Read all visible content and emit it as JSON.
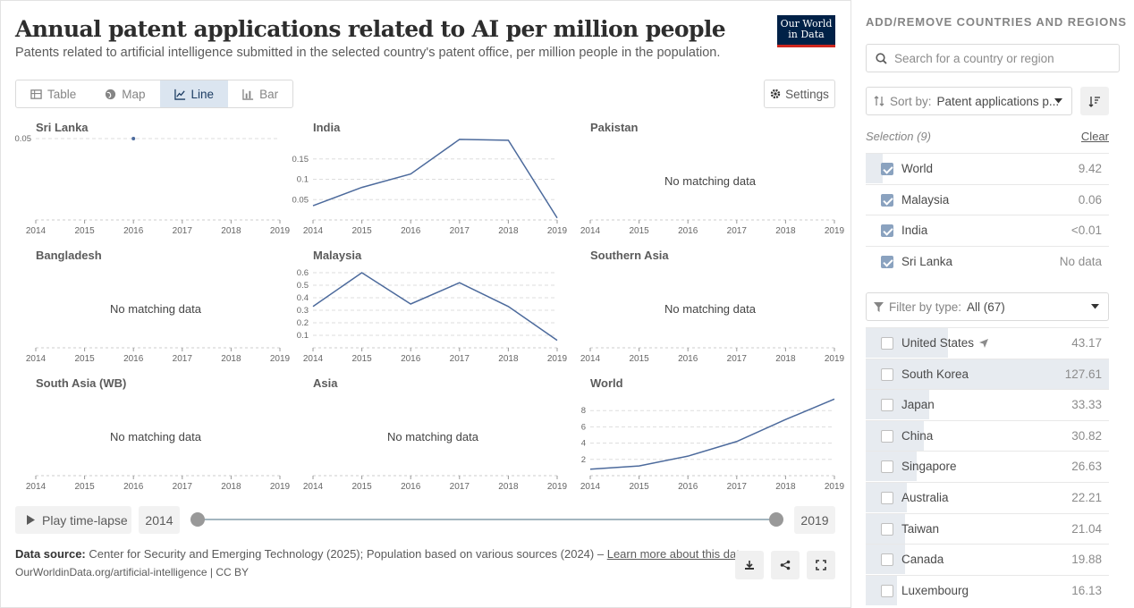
{
  "header": {
    "title": "Annual patent applications related to AI per million people",
    "subtitle": "Patents related to artificial intelligence submitted in the selected country's patent office, per million people in the population.",
    "logo_line1": "Our World",
    "logo_line2": "in Data"
  },
  "tabs": [
    {
      "label": "Table",
      "icon": "table-icon",
      "active": false
    },
    {
      "label": "Map",
      "icon": "globe-icon",
      "active": false
    },
    {
      "label": "Line",
      "icon": "line-chart-icon",
      "active": true
    },
    {
      "label": "Bar",
      "icon": "bar-chart-icon",
      "active": false
    }
  ],
  "settings_label": "Settings",
  "no_data_label": "No matching data",
  "chart_data": [
    {
      "type": "line",
      "title": "Sri Lanka",
      "x": [
        2014,
        2015,
        2016,
        2017,
        2018,
        2019
      ],
      "xlim": [
        2014,
        2019
      ],
      "yticks": [
        0.05
      ],
      "ylim": [
        0,
        0.05
      ],
      "series": [
        {
          "values": [
            null,
            null,
            0.05,
            null,
            null,
            null
          ]
        }
      ]
    },
    {
      "type": "line",
      "title": "India",
      "x": [
        2014,
        2015,
        2016,
        2017,
        2018,
        2019
      ],
      "xlim": [
        2014,
        2019
      ],
      "yticks": [
        0.05,
        0.1,
        0.15
      ],
      "ylim": [
        0,
        0.2
      ],
      "series": [
        {
          "values": [
            0.035,
            0.08,
            0.113,
            0.198,
            0.196,
            0.005
          ]
        }
      ]
    },
    {
      "type": "line",
      "title": "Pakistan",
      "x": [
        2014,
        2015,
        2016,
        2017,
        2018,
        2019
      ],
      "xlim": [
        2014,
        2019
      ],
      "no_data": true,
      "series": []
    },
    {
      "type": "line",
      "title": "Bangladesh",
      "x": [
        2014,
        2015,
        2016,
        2017,
        2018,
        2019
      ],
      "xlim": [
        2014,
        2019
      ],
      "no_data": true,
      "series": []
    },
    {
      "type": "line",
      "title": "Malaysia",
      "x": [
        2014,
        2015,
        2016,
        2017,
        2018,
        2019
      ],
      "xlim": [
        2014,
        2019
      ],
      "yticks": [
        0.1,
        0.2,
        0.3,
        0.4,
        0.5,
        0.6
      ],
      "ylim": [
        0,
        0.65
      ],
      "series": [
        {
          "values": [
            0.33,
            0.6,
            0.35,
            0.52,
            0.33,
            0.06
          ]
        }
      ]
    },
    {
      "type": "line",
      "title": "Southern Asia",
      "x": [
        2014,
        2015,
        2016,
        2017,
        2018,
        2019
      ],
      "xlim": [
        2014,
        2019
      ],
      "no_data": true,
      "series": []
    },
    {
      "type": "line",
      "title": "South Asia (WB)",
      "x": [
        2014,
        2015,
        2016,
        2017,
        2018,
        2019
      ],
      "xlim": [
        2014,
        2019
      ],
      "no_data": true,
      "series": []
    },
    {
      "type": "line",
      "title": "Asia",
      "x": [
        2014,
        2015,
        2016,
        2017,
        2018,
        2019
      ],
      "xlim": [
        2014,
        2019
      ],
      "no_data": true,
      "series": []
    },
    {
      "type": "line",
      "title": "World",
      "x": [
        2014,
        2015,
        2016,
        2017,
        2018,
        2019
      ],
      "xlim": [
        2014,
        2019
      ],
      "yticks": [
        2,
        4,
        6,
        8
      ],
      "ylim": [
        0,
        10
      ],
      "series": [
        {
          "values": [
            0.8,
            1.2,
            2.4,
            4.2,
            6.9,
            9.42
          ]
        }
      ]
    }
  ],
  "timeline": {
    "play_label": "Play time-lapse",
    "start_year": "2014",
    "end_year": "2019"
  },
  "footer": {
    "source_label": "Data source:",
    "source_text": "Center for Security and Emerging Technology (2025); Population based on various sources (2024) –",
    "learn_more": "Learn more about this data",
    "url": "OurWorldinData.org/artificial-intelligence | CC BY"
  },
  "sidebar": {
    "heading": "ADD/REMOVE COUNTRIES AND REGIONS",
    "search_placeholder": "Search for a country or region",
    "sort_label": "Sort by:",
    "sort_value": "Patent applications p...",
    "selection_label": "Selection (9)",
    "clear_label": "Clear",
    "filter_label": "Filter by type:",
    "filter_value": "All (67)",
    "selected": [
      {
        "name": "World",
        "value": "9.42",
        "checked": true,
        "bar": 0.07
      },
      {
        "name": "Malaysia",
        "value": "0.06",
        "checked": true,
        "bar": 0.0
      },
      {
        "name": "India",
        "value": "<0.01",
        "checked": true,
        "bar": 0.0
      },
      {
        "name": "Sri Lanka",
        "value": "No data",
        "checked": true,
        "bar": 0.0
      }
    ],
    "entities": [
      {
        "name": "United States",
        "value": "43.17",
        "checked": false,
        "bar": 0.34,
        "icon": "location-arrow-icon"
      },
      {
        "name": "South Korea",
        "value": "127.61",
        "checked": false,
        "bar": 1.0
      },
      {
        "name": "Japan",
        "value": "33.33",
        "checked": false,
        "bar": 0.26
      },
      {
        "name": "China",
        "value": "30.82",
        "checked": false,
        "bar": 0.24
      },
      {
        "name": "Singapore",
        "value": "26.63",
        "checked": false,
        "bar": 0.21
      },
      {
        "name": "Australia",
        "value": "22.21",
        "checked": false,
        "bar": 0.17
      },
      {
        "name": "Taiwan",
        "value": "21.04",
        "checked": false,
        "bar": 0.16
      },
      {
        "name": "Canada",
        "value": "19.88",
        "checked": false,
        "bar": 0.16
      },
      {
        "name": "Luxembourg",
        "value": "16.13",
        "checked": false,
        "bar": 0.13
      }
    ]
  },
  "colors": {
    "line": "#4c6a9c",
    "accent": "#1d3d63",
    "logo_bg": "#002147",
    "logo_stripe": "#ce261e"
  }
}
